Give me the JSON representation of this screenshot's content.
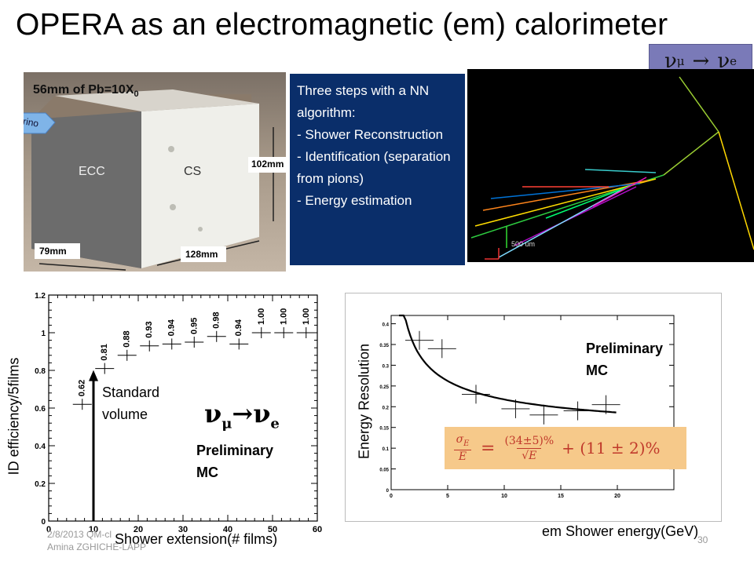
{
  "title": "OPERA as an electromagnetic (em) calorimeter",
  "reaction": {
    "from": "ν",
    "from_sub": "μ",
    "arrow": "→",
    "to": "ν",
    "to_sub": "e"
  },
  "photo": {
    "caption_prefix": "56mm of Pb=10X",
    "caption_sub": "0",
    "neutrino_label": "neutrino",
    "ecc_label": "ECC",
    "cs_label": "CS",
    "dim_height": "102mm",
    "dim_width": "128mm",
    "dim_depth": "79mm"
  },
  "steps": {
    "heading": "Three steps with  a NN algorithm:",
    "items": [
      "- Shower Reconstruction",
      "- Identification (separation from pions)",
      "- Energy estimation"
    ]
  },
  "event_display": {
    "scale_label": "500 um"
  },
  "left_chart": {
    "chart_data": {
      "type": "scatter",
      "x": [
        7.5,
        12.5,
        17.5,
        22.5,
        27.5,
        32.5,
        37.5,
        42.5,
        47.5,
        52.5,
        57.5
      ],
      "y": [
        0.62,
        0.81,
        0.88,
        0.93,
        0.94,
        0.95,
        0.98,
        0.94,
        1.0,
        1.0,
        1.0
      ],
      "data_labels": [
        "0.62",
        "0.81",
        "0.88",
        "0.93",
        "0.94",
        "0.95",
        "0.98",
        "0.94",
        "1.00",
        "1.00",
        "1.00"
      ],
      "xlim": [
        0,
        60
      ],
      "ylim": [
        0,
        1.2
      ],
      "xticks": [
        "0",
        "10",
        "20",
        "30",
        "40",
        "50",
        "60"
      ],
      "yticks": [
        "0",
        "0.2",
        "0.4",
        "0.6",
        "0.8",
        "1",
        "1.2"
      ],
      "xlabel": "Shower extension(# films)",
      "ylabel": "ID efficiency/5films",
      "annotation_arrow_x": 10
    },
    "standard_volume_1": "Standard",
    "standard_volume_2": "volume",
    "reaction_from": "ν",
    "reaction_from_sub": "μ",
    "reaction_arrow": "→",
    "reaction_to": "ν",
    "reaction_to_sub": "e",
    "preliminary_1": "Preliminary",
    "preliminary_2": "MC"
  },
  "right_chart": {
    "chart_data": {
      "type": "scatter",
      "x": [
        2.5,
        4.5,
        7.5,
        11,
        13.5,
        16.5,
        19
      ],
      "y": [
        0.36,
        0.34,
        0.23,
        0.195,
        0.18,
        0.19,
        0.205
      ],
      "fit_curve": {
        "a": 0.34,
        "b": 0.11
      },
      "xlim": [
        0,
        25
      ],
      "ylim": [
        0,
        0.42
      ],
      "xticks": [
        "0",
        "5",
        "10",
        "15",
        "20"
      ],
      "yticks": [
        "0",
        "0.05",
        "0.1",
        "0.15",
        "0.2",
        "0.25",
        "0.3",
        "0.35",
        "0.4"
      ],
      "xlabel": "em Shower energy(GeV)",
      "ylabel": "Energy Resolution"
    },
    "formula": {
      "sigma_num": "σ",
      "sigma_sub": "E",
      "sigma_den": "E",
      "equals": "=",
      "num": "(34±5)%",
      "den": "√E",
      "plus": "+ (11 ± 2)%"
    },
    "preliminary_1": "Preliminary",
    "preliminary_2": "MC"
  },
  "footer": {
    "line1": "2/8/2013 QM-cl",
    "line2": "Amina ZGHICHE-LAPP"
  },
  "page_number": "30",
  "colors": {
    "steps_bg": "#0a2e6a",
    "badge_bg": "#7a7ab8",
    "formula_bg": "#f6c98a"
  }
}
